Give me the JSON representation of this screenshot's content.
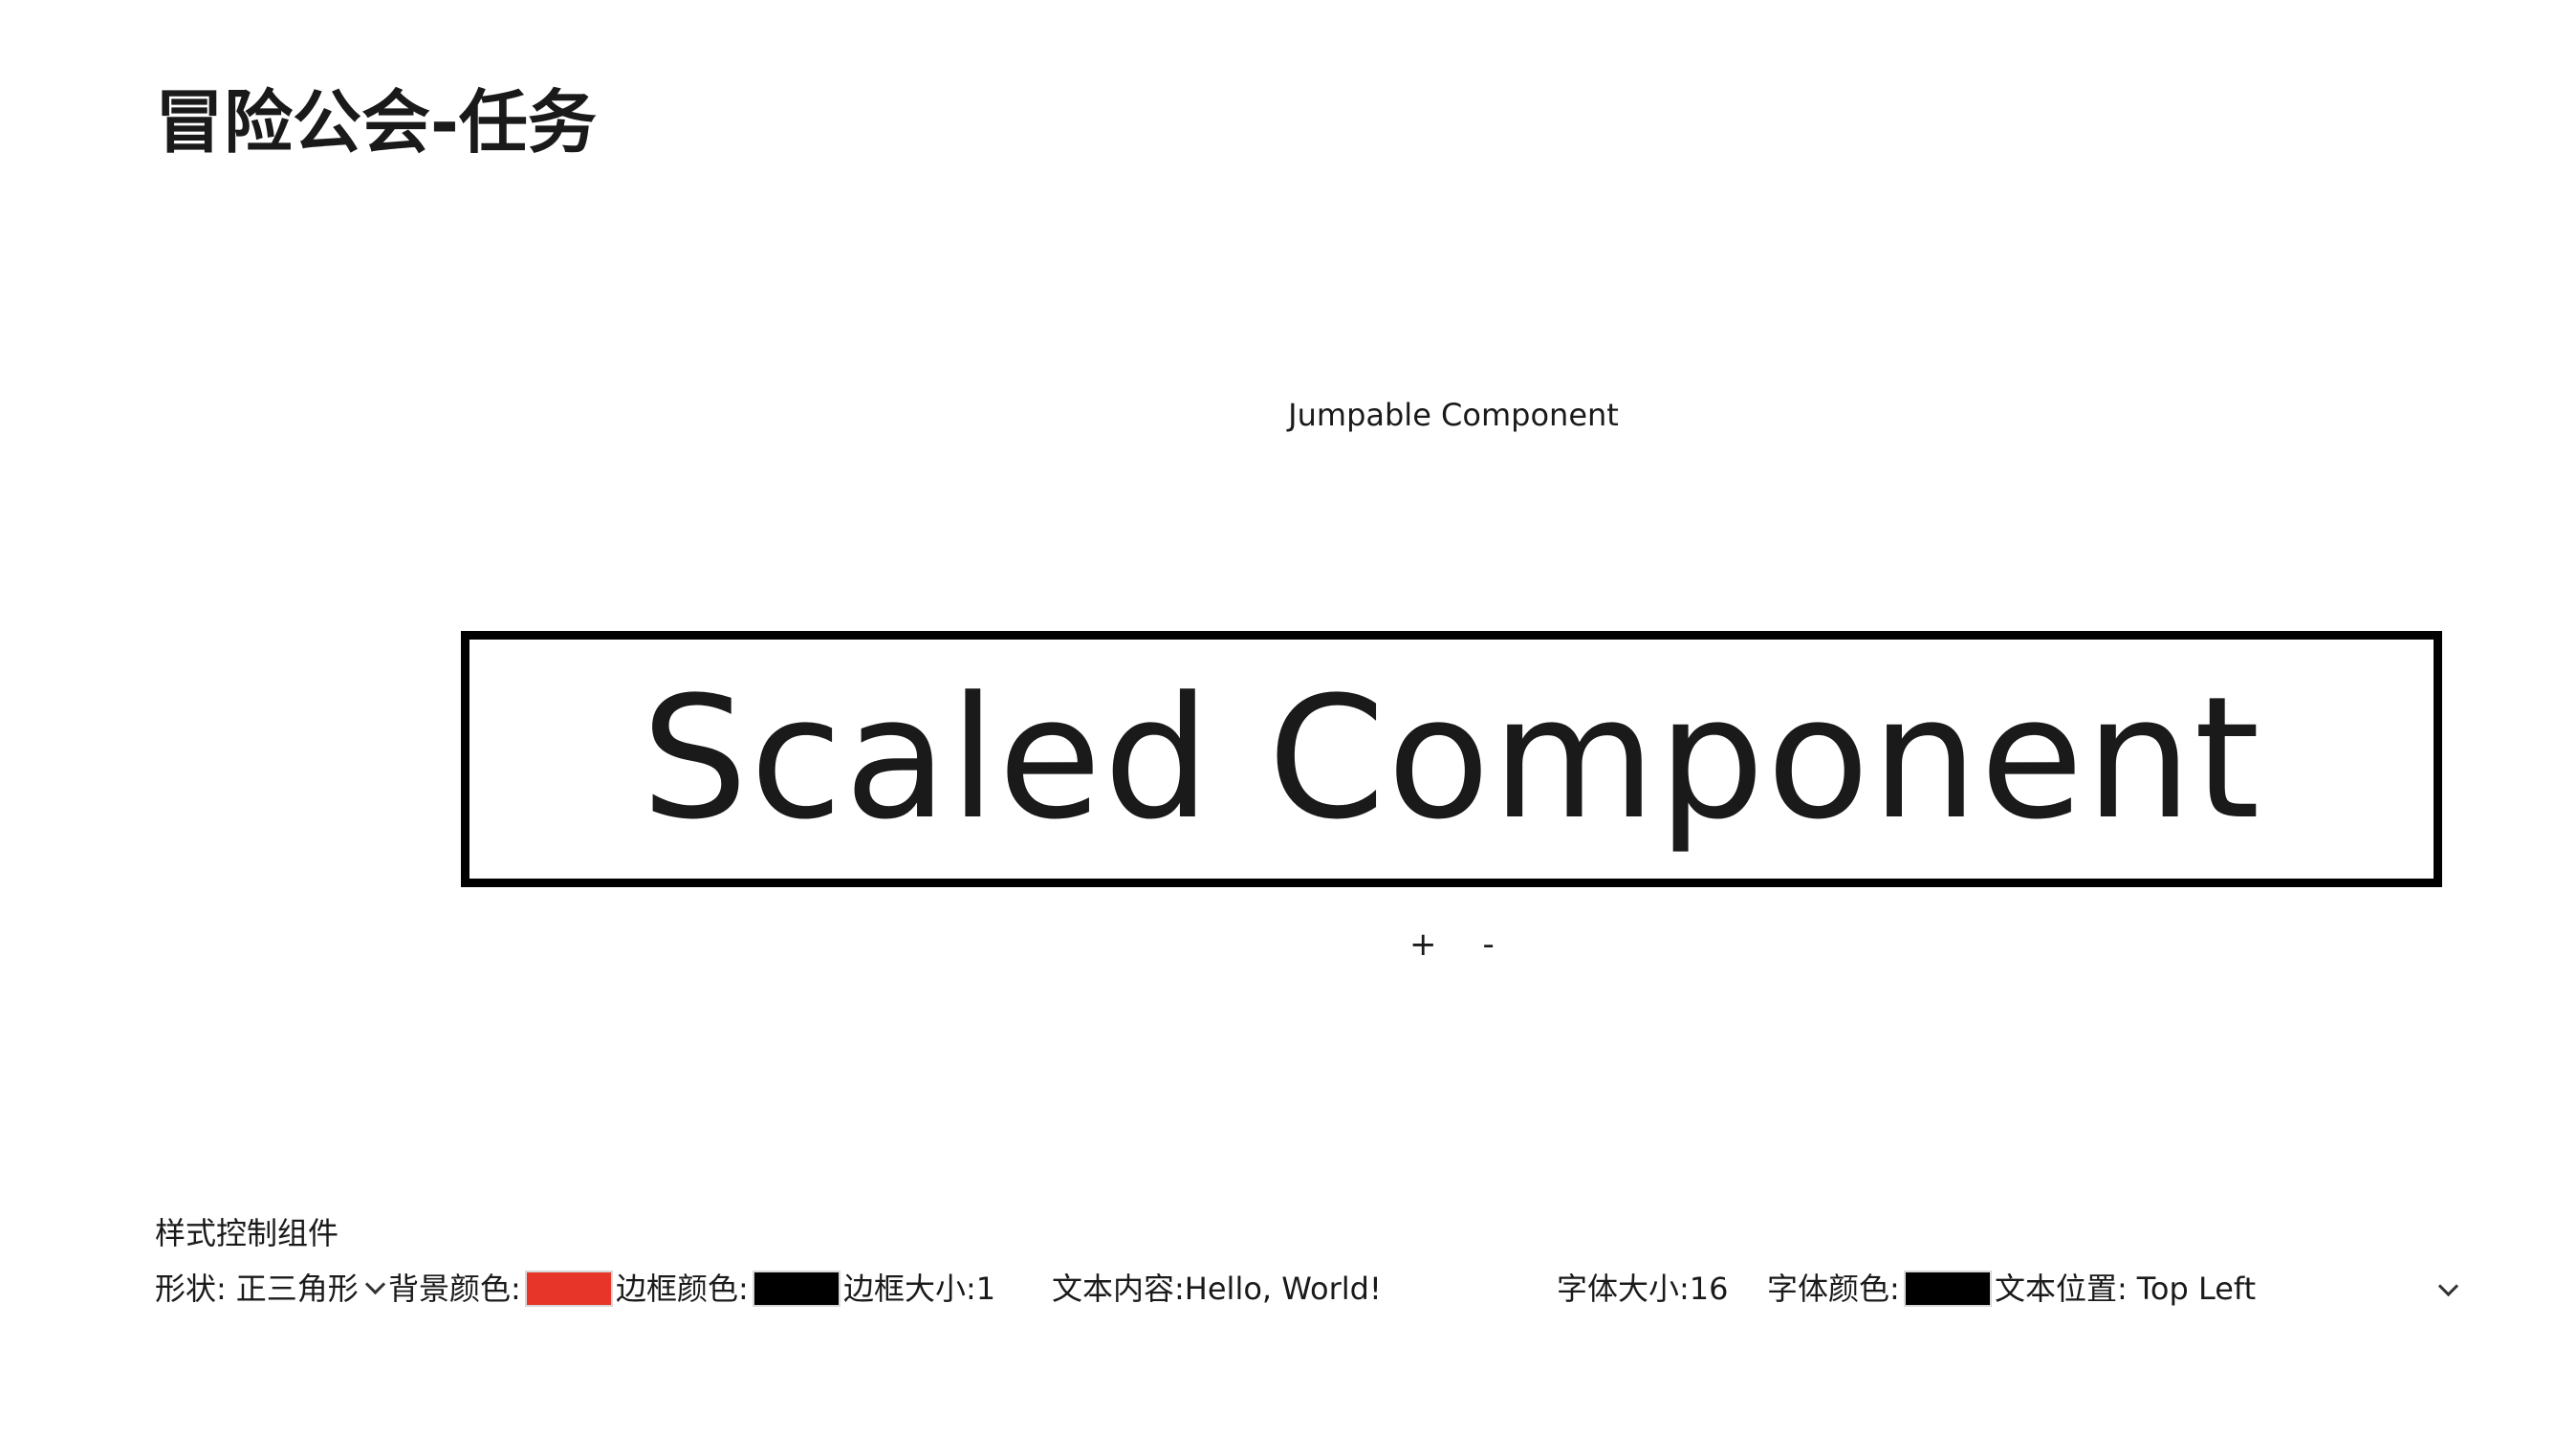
{
  "header": {
    "title": "冒险公会-任务"
  },
  "main": {
    "jumpable_label": "Jumpable Component",
    "scaled_label": "Scaled Component",
    "zoom": {
      "plus_label": "+",
      "minus_label": "-"
    }
  },
  "style_panel": {
    "section_label": "样式控制组件",
    "shape": {
      "label": "形状:",
      "value": "正三角形"
    },
    "background_color": {
      "label": "背景颜色:",
      "value": "#e8352a"
    },
    "border_color": {
      "label": "边框颜色:",
      "value": "#000000"
    },
    "border_size": {
      "label": "边框大小:",
      "value": "1"
    },
    "text_content": {
      "label": "文本内容:",
      "value": "Hello, World!"
    },
    "font_size": {
      "label": "字体大小:",
      "value": "16"
    },
    "font_color": {
      "label": "字体颜色:",
      "value": "#000000"
    },
    "text_position": {
      "label": "文本位置:",
      "value": "Top Left"
    }
  }
}
